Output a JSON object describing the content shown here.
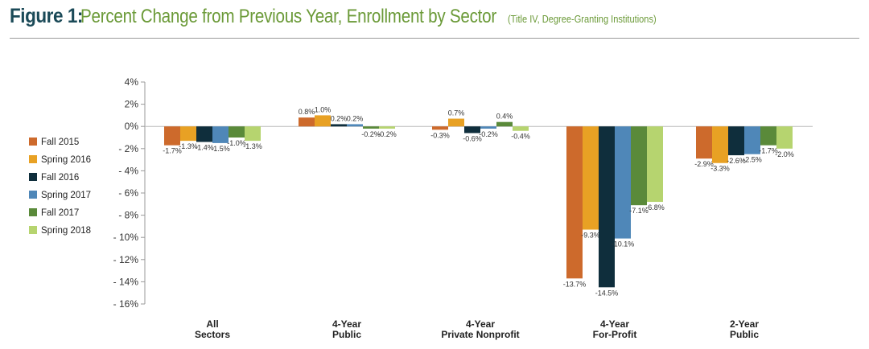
{
  "header": {
    "figure_label": "Figure 1:",
    "title": "Percent Change from Previous Year, Enrollment by Sector",
    "subtitle": "(Title IV, Degree-Granting Institutions)"
  },
  "colors": {
    "figure_label": "#1b4a58",
    "title": "#6b9a38",
    "series": [
      "#cd6a2c",
      "#e8a124",
      "#0f2e3c",
      "#4f87b8",
      "#5a8a3a",
      "#b6d46f"
    ]
  },
  "chart_data": {
    "type": "bar",
    "title": "Percent Change from Previous Year, Enrollment by Sector",
    "subtitle": "(Title IV, Degree-Granting Institutions)",
    "categories": [
      [
        "All",
        "Sectors"
      ],
      [
        "4-Year",
        "Public"
      ],
      [
        "4-Year",
        "Private Nonprofit"
      ],
      [
        "4-Year",
        "For-Profit"
      ],
      [
        "2-Year",
        "Public"
      ]
    ],
    "series": [
      {
        "name": "Fall 2015",
        "values": [
          -1.7,
          0.8,
          -0.3,
          -13.7,
          -2.9
        ],
        "labels": [
          "-1.7%",
          "0.8%",
          "-0.3%",
          "-13.7%",
          "-2.9%"
        ]
      },
      {
        "name": "Spring 2016",
        "values": [
          -1.3,
          1.0,
          0.7,
          -9.3,
          -3.3
        ],
        "labels": [
          "-1.3%",
          "1.0%",
          "0.7%",
          "-9.3%",
          "-3.3%"
        ]
      },
      {
        "name": "Fall 2016",
        "values": [
          -1.4,
          0.2,
          -0.6,
          -14.5,
          -2.6
        ],
        "labels": [
          "-1.4%",
          "0.2%",
          "-0.6%",
          "-14.5%",
          "-2.6%"
        ]
      },
      {
        "name": "Spring 2017",
        "values": [
          -1.5,
          0.2,
          -0.2,
          -10.1,
          -2.5
        ],
        "labels": [
          "-1.5%",
          "0.2%",
          "-0.2%",
          "-10.1%",
          "-2.5%"
        ]
      },
      {
        "name": "Fall 2017",
        "values": [
          -1.0,
          -0.2,
          0.4,
          -7.1,
          -1.7
        ],
        "labels": [
          "-1.0%",
          "-0.2%",
          "0.4%",
          "-7.1%",
          "-1.7%"
        ]
      },
      {
        "name": "Spring 2018",
        "values": [
          -1.3,
          -0.2,
          -0.4,
          -6.8,
          -2.0
        ],
        "labels": [
          "-1.3%",
          "-0.2%",
          "-0.4%",
          "-6.8%",
          "-2.0%"
        ]
      }
    ],
    "y_ticks": [
      4,
      2,
      0,
      -2,
      -4,
      -6,
      -8,
      -10,
      -12,
      -14,
      -16
    ],
    "y_tick_labels": [
      "4%",
      "2%",
      "0%",
      "- 2%",
      "- 4%",
      "- 6%",
      "- 8%",
      "- 10%",
      "- 12%",
      "- 14%",
      "- 16%"
    ],
    "ylim": [
      -16,
      4
    ],
    "grid": false,
    "legend_position": "left"
  }
}
